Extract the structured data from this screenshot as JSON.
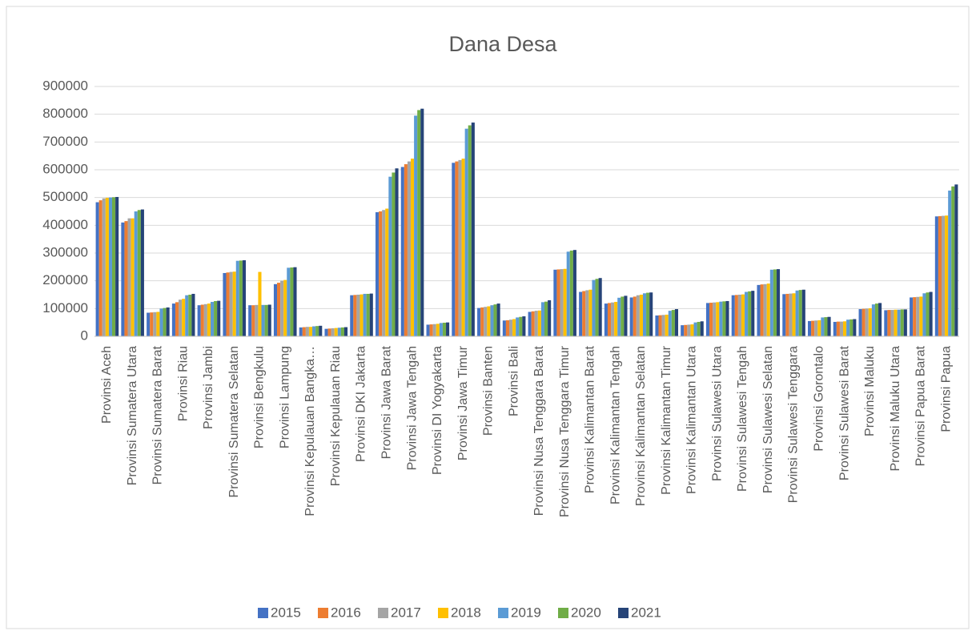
{
  "chart_data": {
    "type": "bar",
    "title": "Dana Desa",
    "categories": [
      "Provinsi Aceh",
      "Provinsi Sumatera Utara",
      "Provinsi Sumatera Barat",
      "Provinsi Riau",
      "Provinsi Jambi",
      "Provinsi Sumatera Selatan",
      "Provinsi Bengkulu",
      "Provinsi Lampung",
      "Provinsi Kepulauan Bangka…",
      "Provinsi Kepulauan Riau",
      "Provinsi DKI Jakarta",
      "Provinsi Jawa Barat",
      "Provinsi Jawa Tengah",
      "Provinsi DI Yogyakarta",
      "Provinsi Jawa Timur",
      "Provinsi Banten",
      "Provinsi Bali",
      "Provinsi Nusa Tenggara Barat",
      "Provinsi Nusa Tenggara Timur",
      "Provinsi Kalimantan Barat",
      "Provinsi Kalimantan Tengah",
      "Provinsi Kalimantan Selatan",
      "Provinsi Kalimantan Timur",
      "Provinsi Kalimantan Utara",
      "Provinsi Sulawesi Utara",
      "Provinsi Sulawesi Tengah",
      "Provinsi Sulawesi Selatan",
      "Provinsi Sulawesi Tenggara",
      "Provinsi Gorontalo",
      "Provinsi Sulawesi Barat",
      "Provinsi Maluku",
      "Provinsi Maluku Utara",
      "Provinsi Papua Barat",
      "Provinsi Papua"
    ],
    "series": [
      {
        "name": "2015",
        "color": "#4472c4",
        "values": [
          483000,
          410000,
          85000,
          118000,
          112000,
          228000,
          112000,
          188000,
          32000,
          27000,
          148000,
          447000,
          610000,
          42000,
          625000,
          102000,
          57000,
          88000,
          240000,
          160000,
          118000,
          140000,
          75000,
          40000,
          120000,
          148000,
          185000,
          152000,
          55000,
          52000,
          98000,
          94000,
          140000,
          432000
        ]
      },
      {
        "name": "2016",
        "color": "#ed7d31",
        "values": [
          490000,
          415000,
          86000,
          123000,
          114000,
          230000,
          112000,
          193000,
          33000,
          28000,
          149000,
          450000,
          620000,
          43000,
          630000,
          104000,
          58000,
          90000,
          241000,
          163000,
          120000,
          143000,
          76000,
          41000,
          121000,
          149000,
          187000,
          153000,
          56000,
          53000,
          99000,
          95000,
          141000,
          433000
        ]
      },
      {
        "name": "2017",
        "color": "#a5a5a5",
        "values": [
          497000,
          425000,
          87000,
          132000,
          116000,
          232000,
          113000,
          200000,
          34000,
          29000,
          150000,
          455000,
          630000,
          44000,
          635000,
          106000,
          60000,
          92000,
          242000,
          166000,
          122000,
          148000,
          77000,
          42000,
          122000,
          150000,
          188000,
          154000,
          57000,
          53000,
          100000,
          95000,
          142000,
          434000
        ]
      },
      {
        "name": "2018",
        "color": "#ffc000",
        "values": [
          499000,
          425000,
          88000,
          135000,
          118000,
          233000,
          232000,
          203000,
          34000,
          30000,
          151000,
          460000,
          640000,
          45000,
          640000,
          108000,
          62000,
          93000,
          243000,
          168000,
          124000,
          150000,
          78000,
          43000,
          123000,
          151000,
          190000,
          155000,
          58000,
          54000,
          101000,
          96000,
          143000,
          435000
        ]
      },
      {
        "name": "2019",
        "color": "#5b9bd5",
        "values": [
          500000,
          450000,
          100000,
          148000,
          124000,
          272000,
          113000,
          247000,
          36000,
          31000,
          153000,
          575000,
          795000,
          48000,
          748000,
          112000,
          68000,
          123000,
          305000,
          203000,
          139000,
          155000,
          92000,
          50000,
          125000,
          160000,
          240000,
          165000,
          68000,
          60000,
          115000,
          96000,
          155000,
          525000
        ]
      },
      {
        "name": "2020",
        "color": "#70ad47",
        "values": [
          501000,
          455000,
          102000,
          150000,
          127000,
          273000,
          113000,
          248000,
          37000,
          32000,
          153000,
          590000,
          815000,
          49000,
          760000,
          115000,
          70000,
          125000,
          309000,
          207000,
          143000,
          157000,
          95000,
          52000,
          126000,
          162000,
          241000,
          167000,
          69000,
          61000,
          118000,
          97000,
          158000,
          540000
        ]
      },
      {
        "name": "2021",
        "color": "#264478",
        "values": [
          502000,
          457000,
          104000,
          153000,
          128000,
          274000,
          114000,
          249000,
          38000,
          33000,
          154000,
          605000,
          820000,
          50000,
          770000,
          118000,
          72000,
          130000,
          311000,
          210000,
          146000,
          158000,
          98000,
          54000,
          127000,
          164000,
          242000,
          168000,
          70000,
          62000,
          120000,
          97000,
          160000,
          547000
        ]
      }
    ],
    "ylim": [
      0,
      900000
    ],
    "yticks": [
      0,
      100000,
      200000,
      300000,
      400000,
      500000,
      600000,
      700000,
      800000,
      900000
    ],
    "grid": true
  }
}
